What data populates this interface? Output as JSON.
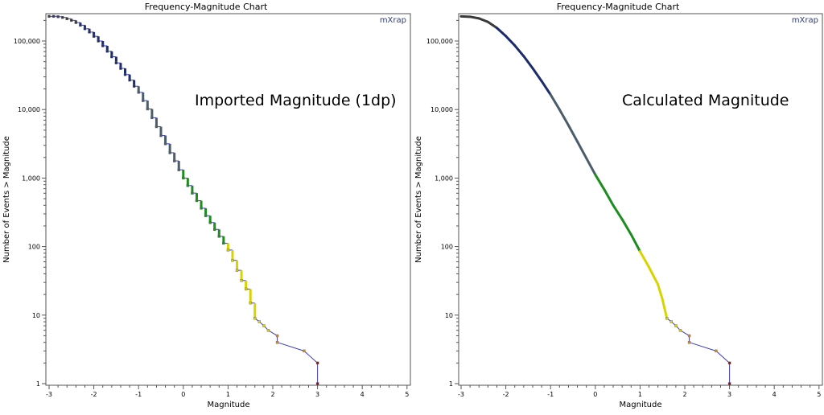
{
  "colors": {
    "line": "#3b3bbf",
    "very_small": "#3a3a3a",
    "small": "#1c2b6b",
    "mid": "#4b5d6a",
    "m0_1": "#1e8c1e",
    "m1_2": "#d9d400",
    "m2_3": "#e08a1e",
    "m3": "#8b1010",
    "logo": "#2b3a8a"
  },
  "chart_data": [
    {
      "type": "line",
      "style": "step",
      "title": "Frequency-Magnitude Chart",
      "annotation": "Imported Magnitude (1dp)",
      "logo": "mXrap",
      "xlabel": "Magnitude",
      "ylabel": "Number of Events > Magnitude",
      "xlim": [
        -3,
        5
      ],
      "ylim": [
        1,
        240000
      ],
      "yscale": "log",
      "xticks": [
        "-3",
        "-2",
        "-1",
        "0",
        "1",
        "2",
        "3",
        "4",
        "5"
      ],
      "yticks": [
        "1",
        "10",
        "100",
        "1,000",
        "10,000",
        "100,000"
      ],
      "points": [
        [
          -3.0,
          229000
        ],
        [
          -2.9,
          229000
        ],
        [
          -2.8,
          226000
        ],
        [
          -2.7,
          221000
        ],
        [
          -2.6,
          211000
        ],
        [
          -2.5,
          200000
        ],
        [
          -2.4,
          186000
        ],
        [
          -2.3,
          170000
        ],
        [
          -2.2,
          151000
        ],
        [
          -2.1,
          135000
        ],
        [
          -2.0,
          117000
        ],
        [
          -1.9,
          100000
        ],
        [
          -1.8,
          85100
        ],
        [
          -1.7,
          70800
        ],
        [
          -1.6,
          58900
        ],
        [
          -1.5,
          47900
        ],
        [
          -1.4,
          39800
        ],
        [
          -1.3,
          32400
        ],
        [
          -1.2,
          26900
        ],
        [
          -1.1,
          21900
        ],
        [
          -1.0,
          17800
        ],
        [
          -0.9,
          13500
        ],
        [
          -0.8,
          10200
        ],
        [
          -0.7,
          7590
        ],
        [
          -0.6,
          5620
        ],
        [
          -0.5,
          4170
        ],
        [
          -0.4,
          3160
        ],
        [
          -0.3,
          2340
        ],
        [
          -0.2,
          1780
        ],
        [
          -0.1,
          1320
        ],
        [
          0.0,
          1000
        ],
        [
          0.1,
          776
        ],
        [
          0.2,
          603
        ],
        [
          0.3,
          468
        ],
        [
          0.4,
          363
        ],
        [
          0.5,
          282
        ],
        [
          0.6,
          224
        ],
        [
          0.7,
          178
        ],
        [
          0.8,
          141
        ],
        [
          0.9,
          112
        ],
        [
          1.0,
          89
        ],
        [
          1.1,
          63
        ],
        [
          1.2,
          45
        ],
        [
          1.3,
          32
        ],
        [
          1.4,
          24
        ],
        [
          1.5,
          15
        ],
        [
          1.6,
          9
        ],
        [
          1.7,
          8
        ],
        [
          1.8,
          7
        ],
        [
          1.9,
          6
        ],
        [
          2.1,
          5
        ],
        [
          2.1,
          4
        ],
        [
          2.7,
          3
        ],
        [
          3.0,
          2
        ],
        [
          3.0,
          1
        ]
      ]
    },
    {
      "type": "line",
      "style": "smooth",
      "title": "Frequency-Magnitude Chart",
      "annotation": "Calculated Magnitude",
      "logo": "mXrap",
      "xlabel": "Magnitude",
      "ylabel": "Number of Events > Magnitude",
      "xlim": [
        -3,
        5
      ],
      "ylim": [
        1,
        240000
      ],
      "yscale": "log",
      "xticks": [
        "-3",
        "-2",
        "-1",
        "0",
        "1",
        "2",
        "3",
        "4",
        "5"
      ],
      "yticks": [
        "1",
        "10",
        "100",
        "1,000",
        "10,000",
        "100,000"
      ],
      "points": [
        [
          -3.0,
          229000
        ],
        [
          -2.8,
          226000
        ],
        [
          -2.6,
          214000
        ],
        [
          -2.4,
          190000
        ],
        [
          -2.2,
          155000
        ],
        [
          -2.0,
          118000
        ],
        [
          -1.8,
          86000
        ],
        [
          -1.6,
          60000
        ],
        [
          -1.4,
          40000
        ],
        [
          -1.2,
          26000
        ],
        [
          -1.0,
          16500
        ],
        [
          -0.8,
          10000
        ],
        [
          -0.6,
          5900
        ],
        [
          -0.4,
          3400
        ],
        [
          -0.2,
          1950
        ],
        [
          0.0,
          1120
        ],
        [
          0.2,
          680
        ],
        [
          0.4,
          400
        ],
        [
          0.6,
          250
        ],
        [
          0.8,
          150
        ],
        [
          1.0,
          85
        ],
        [
          1.2,
          50
        ],
        [
          1.4,
          28
        ],
        [
          1.5,
          17
        ],
        [
          1.6,
          9
        ],
        [
          1.7,
          8
        ],
        [
          1.8,
          7
        ],
        [
          1.9,
          6
        ],
        [
          2.1,
          5
        ],
        [
          2.1,
          4
        ],
        [
          2.7,
          3
        ],
        [
          3.0,
          2
        ],
        [
          3.0,
          1
        ]
      ]
    }
  ]
}
